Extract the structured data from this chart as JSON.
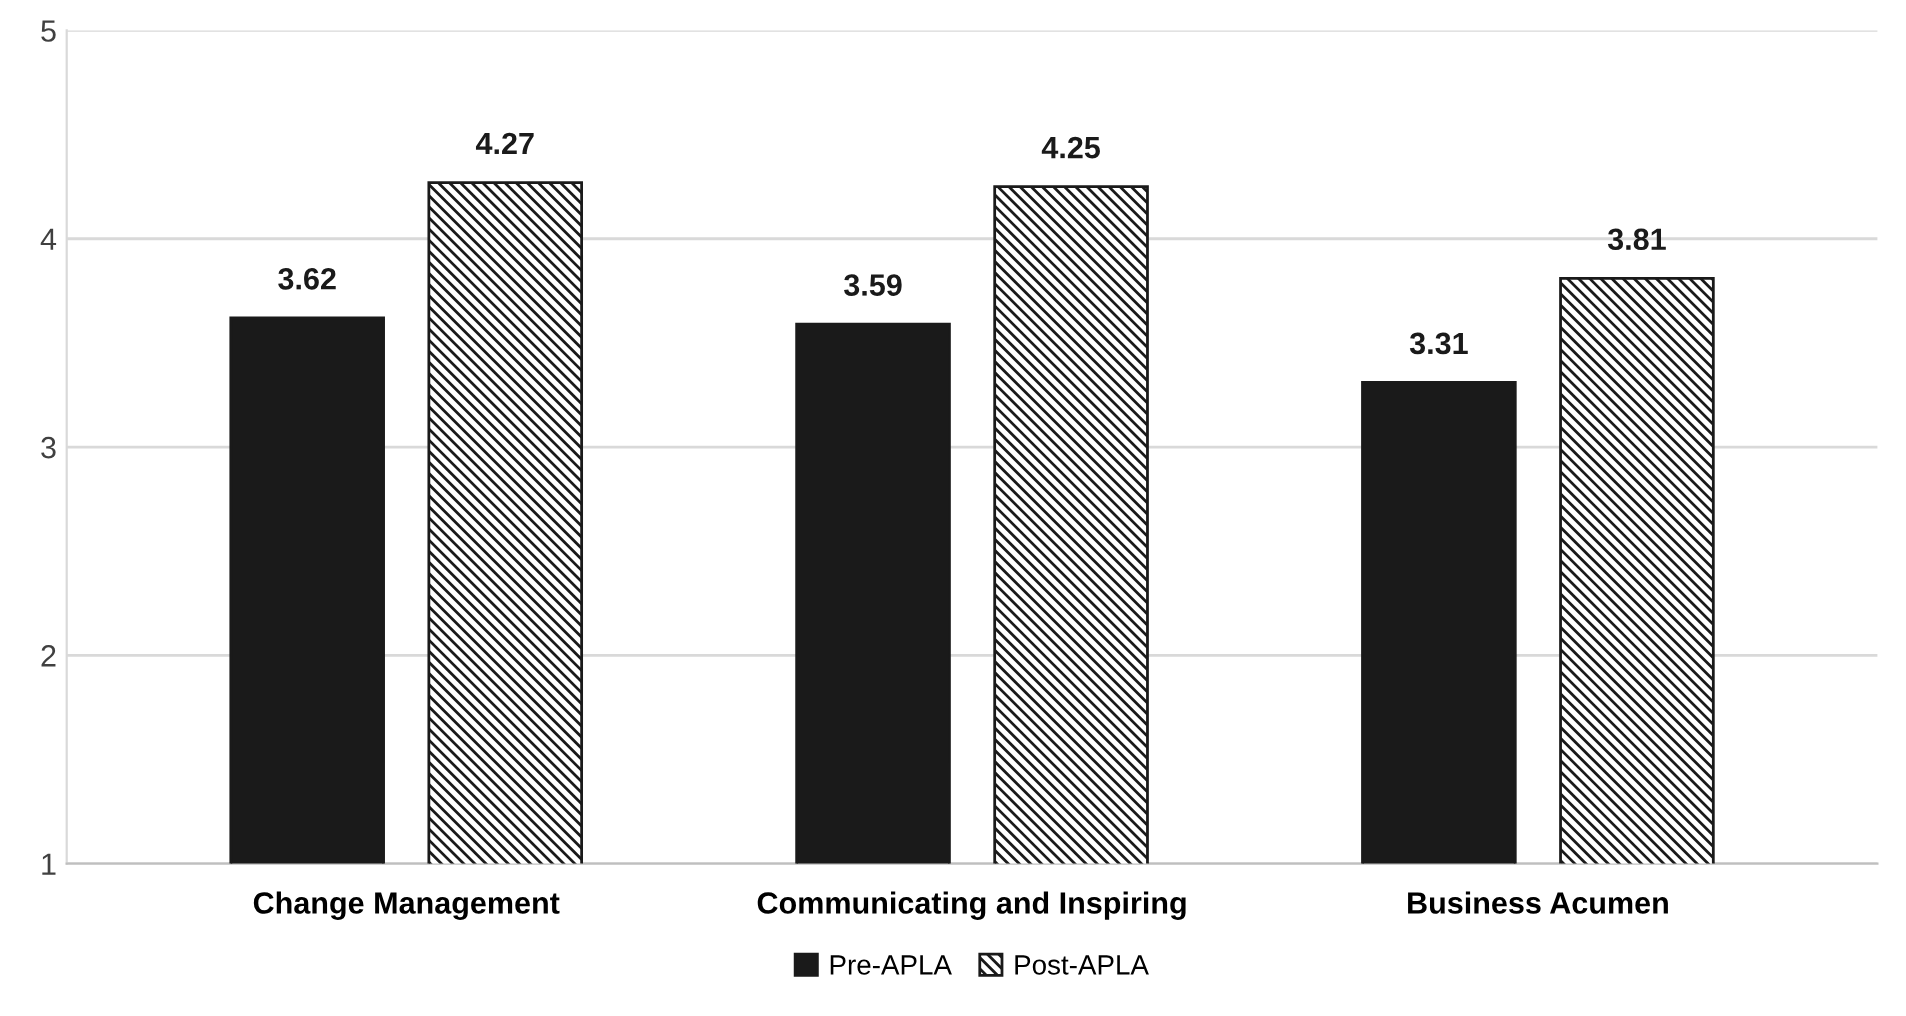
{
  "chart_data": {
    "type": "bar",
    "categories": [
      "Change Management",
      "Communicating and Inspiring",
      "Business Acumen"
    ],
    "series": [
      {
        "name": "Pre-APLA",
        "color": "#1a1a1a",
        "values": [
          3.62,
          3.59,
          3.31
        ]
      },
      {
        "name": "Post-APLA",
        "color": "#1a1a1a",
        "values": [
          4.27,
          4.25,
          3.81
        ]
      }
    ],
    "ylim": [
      1,
      5
    ],
    "yticks": [
      1,
      2,
      3,
      4,
      5
    ],
    "grid": "y",
    "legend": "bottom",
    "data_labels": true
  }
}
